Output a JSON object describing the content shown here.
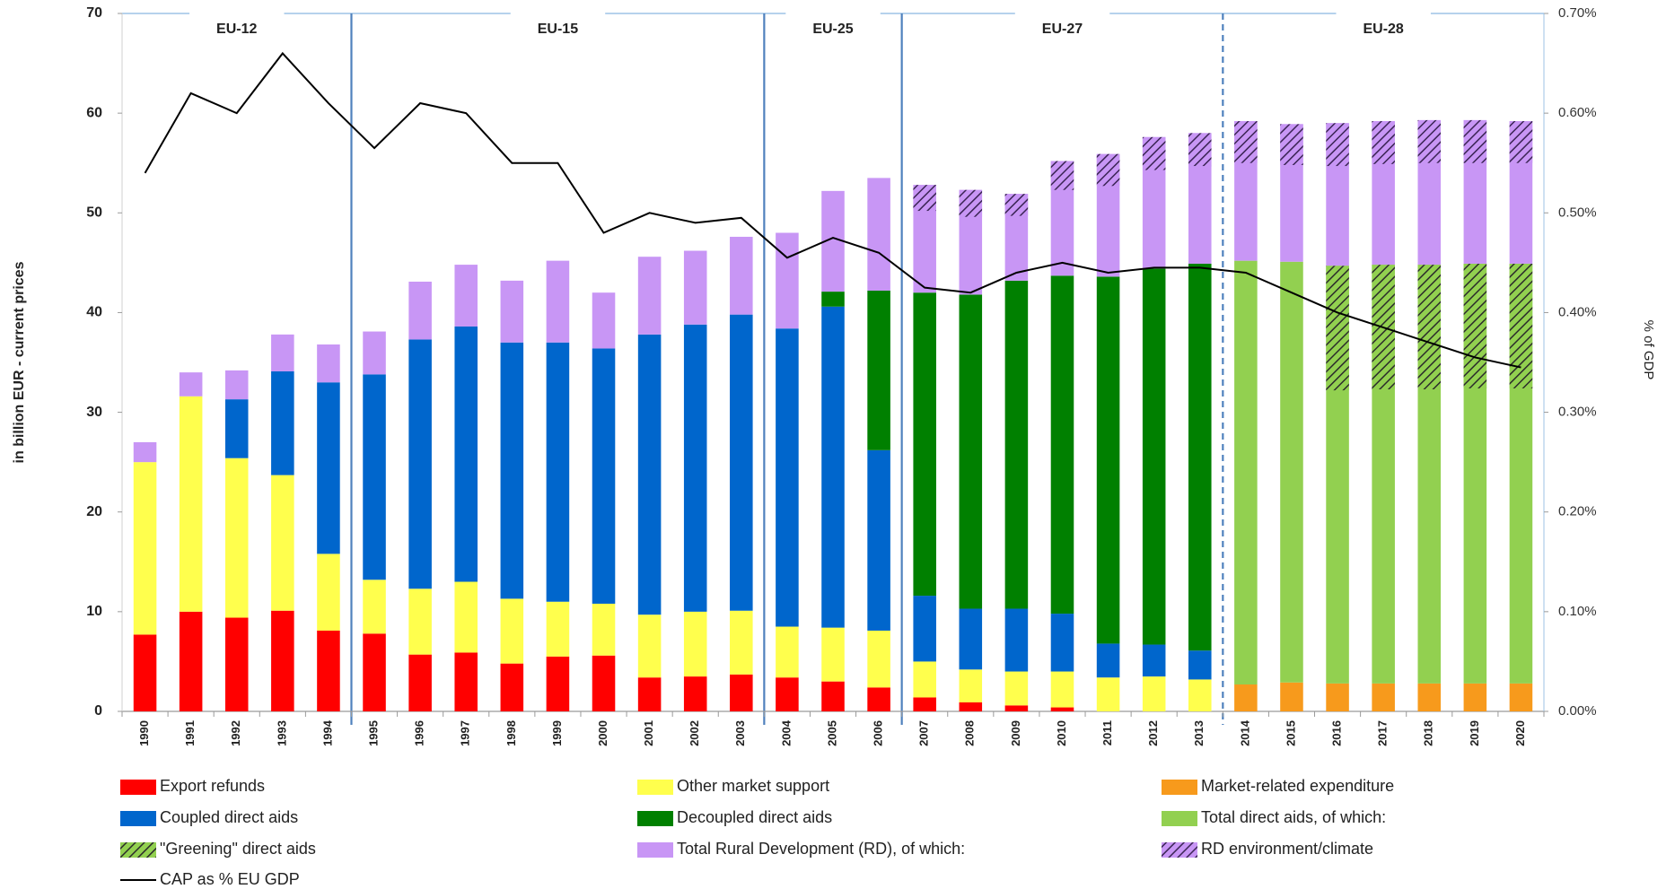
{
  "chart_data": {
    "type": "bar",
    "stacked": true,
    "y_label": "in billion EUR - current prices",
    "y2_label": "% of GDP",
    "categories": [
      "1990",
      "1991",
      "1992",
      "1993",
      "1994",
      "1995",
      "1996",
      "1997",
      "1998",
      "1999",
      "2000",
      "2001",
      "2002",
      "2003",
      "2004",
      "2005",
      "2006",
      "2007",
      "2008",
      "2009",
      "2010",
      "2011",
      "2012",
      "2013",
      "2014",
      "2015",
      "2016",
      "2017",
      "2018",
      "2019",
      "2020"
    ],
    "ylim": [
      0,
      70
    ],
    "yticks": [
      0,
      10,
      20,
      30,
      40,
      50,
      60,
      70
    ],
    "y2lim": [
      0,
      0.7
    ],
    "y2ticks": [
      {
        "value": 0,
        "label": "0.00%"
      },
      {
        "value": 0.1,
        "label": "0.10%"
      },
      {
        "value": 0.2,
        "label": "0.20%"
      },
      {
        "value": 0.3,
        "label": "0.30%"
      },
      {
        "value": 0.4,
        "label": "0.40%"
      },
      {
        "value": 0.5,
        "label": "0.50%"
      },
      {
        "value": 0.6,
        "label": "0.60%"
      },
      {
        "value": 0.7,
        "label": "0.70%"
      }
    ],
    "grid": false,
    "legend": "bottom",
    "periods": [
      {
        "label": "EU-12",
        "from": "1990",
        "to": "1994"
      },
      {
        "label": "EU-15",
        "from": "1995",
        "to": "2003"
      },
      {
        "label": "EU-25",
        "from": "2004",
        "to": "2006"
      },
      {
        "label": "EU-27",
        "from": "2007",
        "to": "2013"
      },
      {
        "label": "EU-28",
        "from": "2014",
        "to": "2020",
        "dashed": true
      }
    ],
    "series": [
      {
        "name": "Export refunds",
        "color": "#ff0000",
        "values": [
          7.7,
          10,
          9.4,
          10.1,
          8.1,
          7.8,
          5.7,
          5.9,
          4.8,
          5.5,
          5.6,
          3.4,
          3.5,
          3.7,
          3.4,
          3.0,
          2.4,
          1.4,
          0.9,
          0.6,
          0.4,
          null,
          null,
          null,
          null,
          null,
          null,
          null,
          null,
          null,
          null
        ]
      },
      {
        "name": "Other market support",
        "color": "#ffff4d",
        "values": [
          17.3,
          21.6,
          16,
          13.6,
          7.7,
          5.4,
          6.6,
          7.1,
          6.5,
          5.5,
          5.2,
          6.3,
          6.5,
          6.4,
          5.1,
          5.4,
          5.7,
          3.6,
          3.3,
          3.4,
          3.6,
          3.4,
          3.5,
          3.2,
          null,
          null,
          null,
          null,
          null,
          null,
          null
        ]
      },
      {
        "name": "Market-related expenditure",
        "color": "#f79a1c",
        "values": [
          null,
          null,
          null,
          null,
          null,
          null,
          null,
          null,
          null,
          null,
          null,
          null,
          null,
          null,
          null,
          null,
          null,
          null,
          null,
          null,
          null,
          null,
          null,
          null,
          2.7,
          2.9,
          2.8,
          2.8,
          2.8,
          2.8,
          2.8
        ]
      },
      {
        "name": "Coupled direct aids",
        "color": "#0066cc",
        "values": [
          null,
          null,
          5.9,
          10.4,
          17.2,
          20.6,
          25,
          25.6,
          25.7,
          26,
          25.6,
          28.1,
          28.8,
          29.7,
          29.9,
          32.2,
          18.1,
          6.6,
          6.1,
          6.3,
          5.8,
          3.4,
          3.2,
          2.9,
          null,
          null,
          null,
          null,
          null,
          null,
          null
        ]
      },
      {
        "name": "Decoupled direct aids",
        "color": "#008000",
        "values": [
          null,
          null,
          null,
          null,
          null,
          null,
          null,
          null,
          null,
          null,
          null,
          null,
          null,
          null,
          null,
          1.5,
          16,
          30.4,
          31.5,
          32.9,
          33.9,
          36.8,
          37.7,
          38.8,
          null,
          null,
          null,
          null,
          null,
          null,
          null
        ]
      },
      {
        "name": "Total direct aids, of which:",
        "color": "#92d050",
        "values": [
          null,
          null,
          null,
          null,
          null,
          null,
          null,
          null,
          null,
          null,
          null,
          null,
          null,
          null,
          null,
          null,
          null,
          null,
          null,
          null,
          null,
          null,
          null,
          null,
          42.5,
          42.2,
          41.9,
          42,
          42,
          42.1,
          42.1
        ]
      },
      {
        "name": "\"Greening\" direct aids",
        "color": "#92d050",
        "pattern": "hatch",
        "pattern_color": "#2b2b2b",
        "overlay": true,
        "values": [
          null,
          null,
          null,
          null,
          null,
          null,
          null,
          null,
          null,
          null,
          null,
          null,
          null,
          null,
          null,
          null,
          null,
          null,
          null,
          null,
          null,
          null,
          null,
          null,
          null,
          null,
          12.5,
          12.5,
          12.5,
          12.5,
          12.5
        ]
      },
      {
        "name": "Total Rural Development (RD), of which:",
        "color": "#c896f5",
        "values": [
          2,
          2.4,
          2.9,
          3.7,
          3.8,
          4.3,
          5.8,
          6.2,
          6.2,
          8.2,
          5.6,
          7.8,
          7.4,
          7.8,
          9.6,
          10.1,
          11.3,
          10.8,
          10.5,
          8.7,
          11.5,
          12.3,
          13.2,
          13.1,
          14,
          13.8,
          14.3,
          14.4,
          14.5,
          14.4,
          14.3
        ]
      },
      {
        "name": "RD environment/climate",
        "color": "#c896f5",
        "pattern": "hatch",
        "pattern_color": "#3a2454",
        "overlay": true,
        "values": [
          null,
          null,
          null,
          null,
          null,
          null,
          null,
          null,
          null,
          null,
          null,
          null,
          null,
          null,
          null,
          null,
          null,
          2.6,
          2.7,
          2.2,
          2.9,
          3.2,
          3.3,
          3.3,
          4.2,
          4.1,
          4.3,
          4.3,
          4.3,
          4.3,
          4.2
        ]
      },
      {
        "name": "CAP as % EU GDP",
        "type": "line",
        "axis": "y2",
        "color": "#000000",
        "values": [
          0.54,
          0.62,
          0.6,
          0.66,
          0.61,
          0.565,
          0.61,
          0.6,
          0.55,
          0.55,
          0.48,
          0.5,
          0.49,
          0.495,
          0.455,
          0.475,
          0.46,
          0.425,
          0.42,
          0.44,
          0.45,
          0.44,
          0.445,
          0.445,
          0.44,
          0.42,
          0.4,
          0.385,
          0.37,
          0.355,
          0.345
        ]
      }
    ]
  }
}
